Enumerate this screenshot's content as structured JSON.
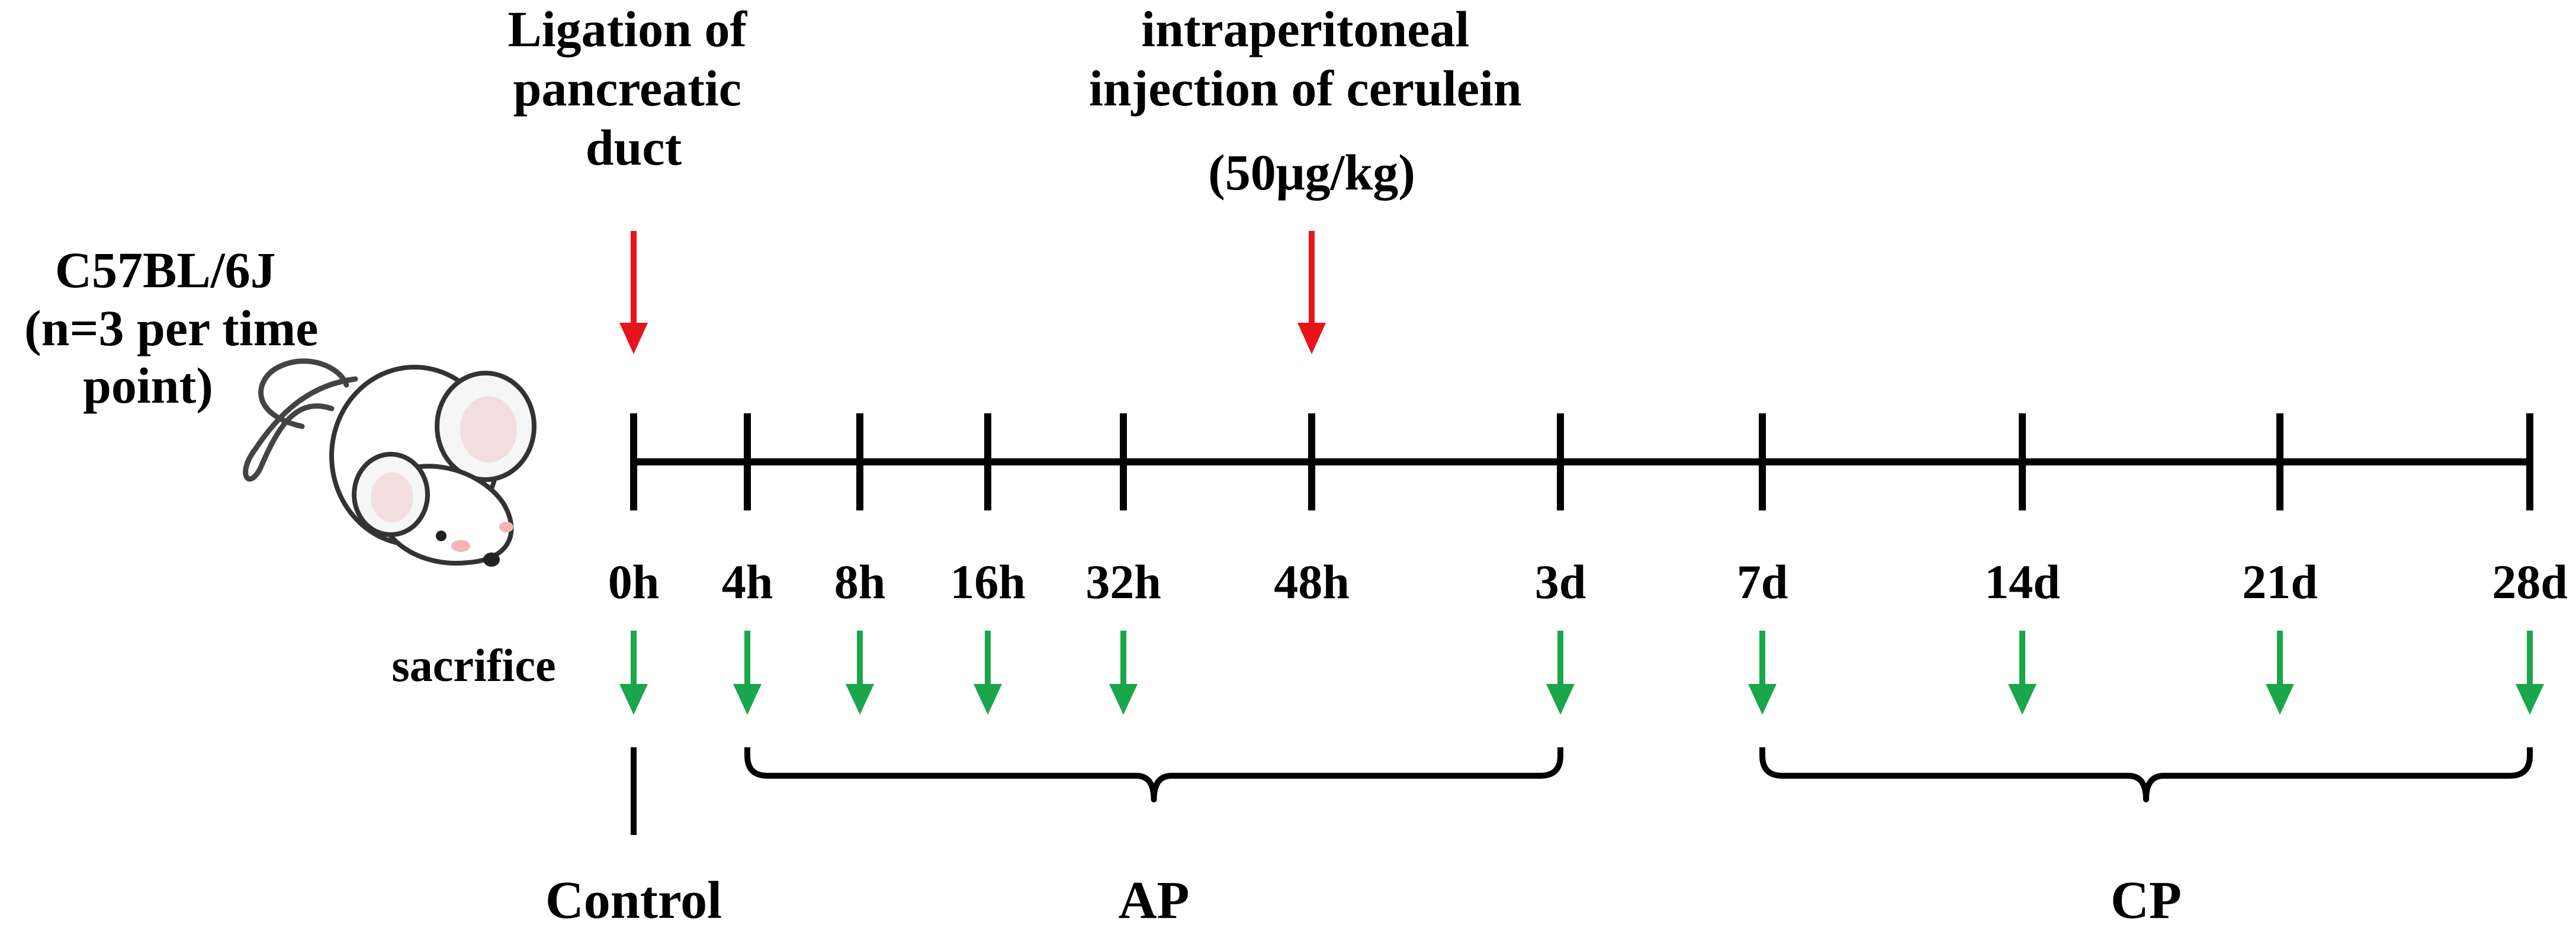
{
  "subject": {
    "lines": [
      "C57BL/6J",
      "(n=3 per time",
      "point)"
    ]
  },
  "annotations": [
    {
      "lines": [
        "Ligation of",
        "pancreatic",
        "duct"
      ],
      "time": "0h",
      "color": "#e8141b"
    },
    {
      "lines": [
        "intraperitoneal",
        "injection of cerulein",
        "(50μg/kg)"
      ],
      "time": "48h",
      "color": "#e8141b"
    }
  ],
  "timeline": {
    "points": [
      "0h",
      "4h",
      "8h",
      "16h",
      "32h",
      "48h",
      "3d",
      "7d",
      "14d",
      "21d",
      "28d"
    ]
  },
  "sacrifice": {
    "label": "sacrifice",
    "color": "#1aa64a",
    "points": [
      "0h",
      "4h",
      "8h",
      "16h",
      "32h",
      "3d",
      "7d",
      "14d",
      "21d",
      "28d"
    ]
  },
  "groups": [
    {
      "label": "Control",
      "from": "0h",
      "to": "0h"
    },
    {
      "label": "AP",
      "from": "4h",
      "to": "3d"
    },
    {
      "label": "CP",
      "from": "7d",
      "to": "28d"
    }
  ],
  "icons": {
    "mouse": "mouse-icon"
  }
}
